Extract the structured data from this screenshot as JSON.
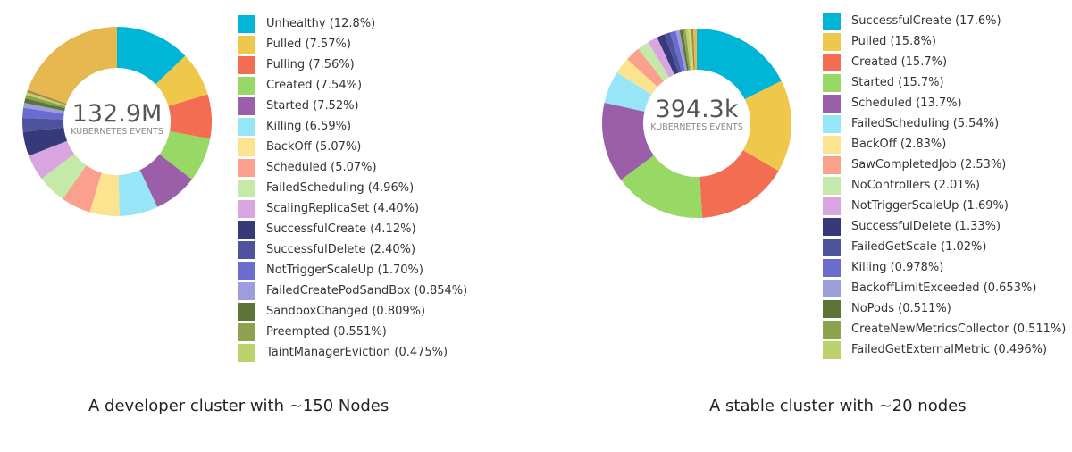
{
  "chart_data": [
    {
      "type": "pie",
      "variant": "donut",
      "center_value": "132.9M",
      "center_label": "KUBERNETES EVENTS",
      "caption": "A developer cluster with ~150 Nodes",
      "legend": "right",
      "slices": [
        {
          "label": "Unhealthy (12.8%)",
          "value": 12.8,
          "color": "#00b5d6"
        },
        {
          "label": "Pulled (7.57%)",
          "value": 7.57,
          "color": "#efc84b"
        },
        {
          "label": "Pulling (7.56%)",
          "value": 7.56,
          "color": "#f26d52"
        },
        {
          "label": "Created (7.54%)",
          "value": 7.54,
          "color": "#97d964"
        },
        {
          "label": "Started (7.52%)",
          "value": 7.52,
          "color": "#9b5ea8"
        },
        {
          "label": "Killing (6.59%)",
          "value": 6.59,
          "color": "#96e6f7"
        },
        {
          "label": "BackOff (5.07%)",
          "value": 5.07,
          "color": "#fce38f"
        },
        {
          "label": "Scheduled (5.07%)",
          "value": 5.07,
          "color": "#fba08c"
        },
        {
          "label": "FailedScheduling (4.96%)",
          "value": 4.96,
          "color": "#c5e9a9"
        },
        {
          "label": "ScalingReplicaSet (4.40%)",
          "value": 4.4,
          "color": "#d8a5e0"
        },
        {
          "label": "SuccessfulCreate (4.12%)",
          "value": 4.12,
          "color": "#373a7a"
        },
        {
          "label": "SuccessfulDelete (2.40%)",
          "value": 2.4,
          "color": "#4e539e"
        },
        {
          "label": "NotTriggerScaleUp (1.70%)",
          "value": 1.7,
          "color": "#6a6ccf"
        },
        {
          "label": "FailedCreatePodSandBox (0.854%)",
          "value": 0.854,
          "color": "#9b9ddc"
        },
        {
          "label": "SandboxChanged (0.809%)",
          "value": 0.809,
          "color": "#5c7537"
        },
        {
          "label": "Preempted (0.551%)",
          "value": 0.551,
          "color": "#8da14f"
        },
        {
          "label": "TaintManagerEviction (0.475%)",
          "value": 0.475,
          "color": "#bbd16b"
        }
      ],
      "unlabeled_slices": [
        {
          "value": 0.4,
          "color": "#a8893a"
        },
        {
          "value": 0.3,
          "color": "#d9b25c"
        },
        {
          "value": 19.3,
          "color": "#e6b84f"
        }
      ]
    },
    {
      "type": "pie",
      "variant": "donut",
      "center_value": "394.3k",
      "center_label": "KUBERNETES EVENTS",
      "caption": "A stable cluster with ~20 nodes",
      "legend": "right",
      "slices": [
        {
          "label": "SuccessfulCreate (17.6%)",
          "value": 17.6,
          "color": "#00b5d6"
        },
        {
          "label": "Pulled (15.8%)",
          "value": 15.8,
          "color": "#efc84b"
        },
        {
          "label": "Created (15.7%)",
          "value": 15.7,
          "color": "#f26d52"
        },
        {
          "label": "Started (15.7%)",
          "value": 15.7,
          "color": "#97d964"
        },
        {
          "label": "Scheduled (13.7%)",
          "value": 13.7,
          "color": "#9b5ea8"
        },
        {
          "label": "FailedScheduling (5.54%)",
          "value": 5.54,
          "color": "#96e6f7"
        },
        {
          "label": "BackOff (2.83%)",
          "value": 2.83,
          "color": "#fce38f"
        },
        {
          "label": "SawCompletedJob (2.53%)",
          "value": 2.53,
          "color": "#fba08c"
        },
        {
          "label": "NoControllers (2.01%)",
          "value": 2.01,
          "color": "#c5e9a9"
        },
        {
          "label": "NotTriggerScaleUp (1.69%)",
          "value": 1.69,
          "color": "#d8a5e0"
        },
        {
          "label": "SuccessfulDelete (1.33%)",
          "value": 1.33,
          "color": "#373a7a"
        },
        {
          "label": "FailedGetScale (1.02%)",
          "value": 1.02,
          "color": "#4e539e"
        },
        {
          "label": "Killing (0.978%)",
          "value": 0.978,
          "color": "#6a6ccf"
        },
        {
          "label": "BackoffLimitExceeded (0.653%)",
          "value": 0.653,
          "color": "#9b9ddc"
        },
        {
          "label": "NoPods (0.511%)",
          "value": 0.511,
          "color": "#5c7537"
        },
        {
          "label": "CreateNewMetricsCollector (0.511%)",
          "value": 0.511,
          "color": "#8da14f"
        },
        {
          "label": "FailedGetExternalMetric (0.496%)",
          "value": 0.496,
          "color": "#bbd16b"
        }
      ],
      "unlabeled_slices": [
        {
          "value": 0.45,
          "color": "#c9d98a"
        },
        {
          "value": 0.35,
          "color": "#a8893a"
        },
        {
          "value": 0.6,
          "color": "#e6b84f"
        }
      ]
    }
  ]
}
